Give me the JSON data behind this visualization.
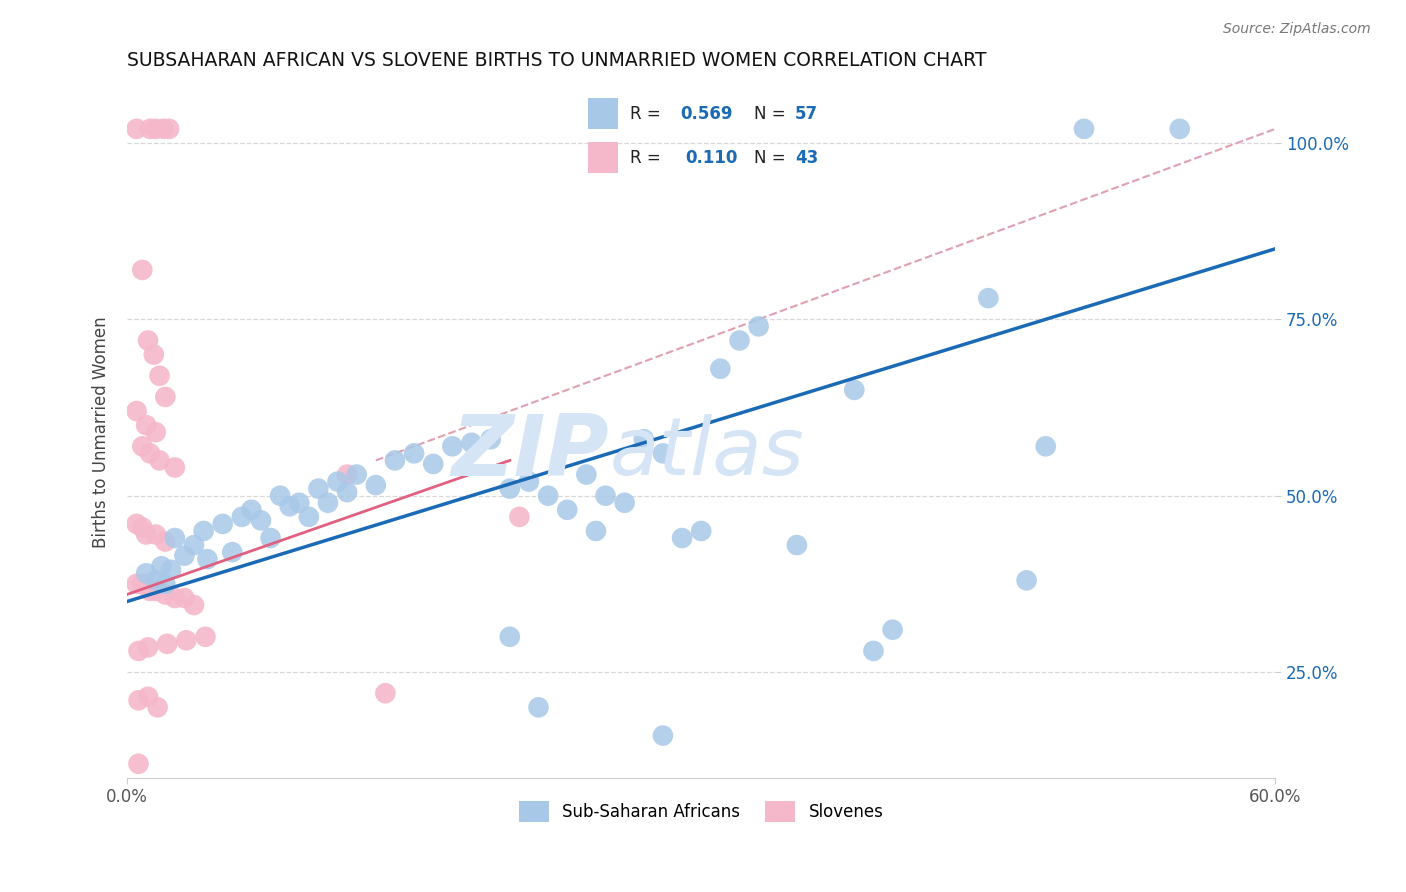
{
  "title": "SUBSAHARAN AFRICAN VS SLOVENE BIRTHS TO UNMARRIED WOMEN CORRELATION CHART",
  "source": "Source: ZipAtlas.com",
  "ylabel": "Births to Unmarried Women",
  "xlim": [
    0.0,
    60.0
  ],
  "ylim": [
    10.0,
    108.0
  ],
  "ytick_vals": [
    25.0,
    50.0,
    75.0,
    100.0
  ],
  "ytick_labels": [
    "25.0%",
    "50.0%",
    "75.0%",
    "100.0%"
  ],
  "xtick_vals": [
    0.0,
    60.0
  ],
  "xtick_labels": [
    "0.0%",
    "60.0%"
  ],
  "blue_color": "#a8c8e8",
  "pink_color": "#f5b8cb",
  "blue_line_color": "#1a6ab5",
  "pink_line_color": "#e06080",
  "dashed_line_color": "#e0a0b0",
  "grid_color": "#d8d8d8",
  "watermark_text": "ZIPatlas",
  "watermark_color": "#d5e5f5",
  "blue_scatter": [
    [
      1.0,
      39.0
    ],
    [
      1.5,
      38.0
    ],
    [
      1.8,
      40.0
    ],
    [
      2.0,
      37.5
    ],
    [
      2.3,
      39.5
    ],
    [
      2.5,
      44.0
    ],
    [
      3.0,
      41.5
    ],
    [
      3.5,
      43.0
    ],
    [
      4.0,
      45.0
    ],
    [
      4.2,
      41.0
    ],
    [
      5.0,
      46.0
    ],
    [
      5.5,
      42.0
    ],
    [
      6.0,
      47.0
    ],
    [
      6.5,
      48.0
    ],
    [
      7.0,
      46.5
    ],
    [
      7.5,
      44.0
    ],
    [
      8.0,
      50.0
    ],
    [
      8.5,
      48.5
    ],
    [
      9.0,
      49.0
    ],
    [
      9.5,
      47.0
    ],
    [
      10.0,
      51.0
    ],
    [
      10.5,
      49.0
    ],
    [
      11.0,
      52.0
    ],
    [
      11.5,
      50.5
    ],
    [
      12.0,
      53.0
    ],
    [
      13.0,
      51.5
    ],
    [
      14.0,
      55.0
    ],
    [
      15.0,
      56.0
    ],
    [
      16.0,
      54.5
    ],
    [
      17.0,
      57.0
    ],
    [
      18.0,
      57.5
    ],
    [
      19.0,
      58.0
    ],
    [
      20.0,
      51.0
    ],
    [
      21.0,
      52.0
    ],
    [
      22.0,
      50.0
    ],
    [
      23.0,
      48.0
    ],
    [
      24.0,
      53.0
    ],
    [
      24.5,
      45.0
    ],
    [
      25.0,
      50.0
    ],
    [
      26.0,
      49.0
    ],
    [
      27.0,
      58.0
    ],
    [
      28.0,
      56.0
    ],
    [
      29.0,
      44.0
    ],
    [
      30.0,
      45.0
    ],
    [
      31.0,
      68.0
    ],
    [
      32.0,
      72.0
    ],
    [
      33.0,
      74.0
    ],
    [
      20.0,
      30.0
    ],
    [
      35.0,
      43.0
    ],
    [
      38.0,
      65.0
    ],
    [
      39.0,
      28.0
    ],
    [
      40.0,
      31.0
    ],
    [
      45.0,
      78.0
    ],
    [
      47.0,
      38.0
    ],
    [
      48.0,
      57.0
    ],
    [
      50.0,
      102.0
    ],
    [
      55.0,
      102.0
    ],
    [
      21.5,
      20.0
    ],
    [
      28.0,
      16.0
    ]
  ],
  "pink_scatter": [
    [
      0.5,
      102.0
    ],
    [
      1.2,
      102.0
    ],
    [
      1.5,
      102.0
    ],
    [
      1.9,
      102.0
    ],
    [
      2.2,
      102.0
    ],
    [
      0.8,
      82.0
    ],
    [
      1.1,
      72.0
    ],
    [
      1.4,
      70.0
    ],
    [
      1.7,
      67.0
    ],
    [
      2.0,
      64.0
    ],
    [
      0.5,
      62.0
    ],
    [
      1.0,
      60.0
    ],
    [
      1.5,
      59.0
    ],
    [
      0.8,
      57.0
    ],
    [
      1.2,
      56.0
    ],
    [
      1.7,
      55.0
    ],
    [
      2.5,
      54.0
    ],
    [
      0.5,
      46.0
    ],
    [
      0.8,
      45.5
    ],
    [
      1.0,
      44.5
    ],
    [
      1.5,
      44.5
    ],
    [
      2.0,
      43.5
    ],
    [
      0.5,
      37.5
    ],
    [
      0.8,
      37.5
    ],
    [
      1.2,
      36.5
    ],
    [
      1.5,
      36.5
    ],
    [
      2.0,
      36.0
    ],
    [
      2.5,
      35.5
    ],
    [
      3.0,
      35.5
    ],
    [
      3.5,
      34.5
    ],
    [
      0.6,
      28.0
    ],
    [
      1.1,
      28.5
    ],
    [
      2.1,
      29.0
    ],
    [
      3.1,
      29.5
    ],
    [
      4.1,
      30.0
    ],
    [
      0.6,
      21.0
    ],
    [
      1.1,
      21.5
    ],
    [
      1.6,
      20.0
    ],
    [
      0.6,
      12.0
    ],
    [
      11.5,
      53.0
    ],
    [
      20.5,
      47.0
    ],
    [
      13.5,
      22.0
    ]
  ],
  "blue_trendline_x": [
    0.0,
    60.0
  ],
  "blue_trendline_y": [
    35.0,
    85.0
  ],
  "pink_trendline_x": [
    0.0,
    20.0
  ],
  "pink_trendline_y": [
    36.0,
    55.0
  ],
  "dashed_trendline_x": [
    13.0,
    60.0
  ],
  "dashed_trendline_y": [
    55.0,
    102.0
  ],
  "legend_r_blue": "0.569",
  "legend_n_blue": "57",
  "legend_r_pink": "0.110",
  "legend_n_pink": "43"
}
